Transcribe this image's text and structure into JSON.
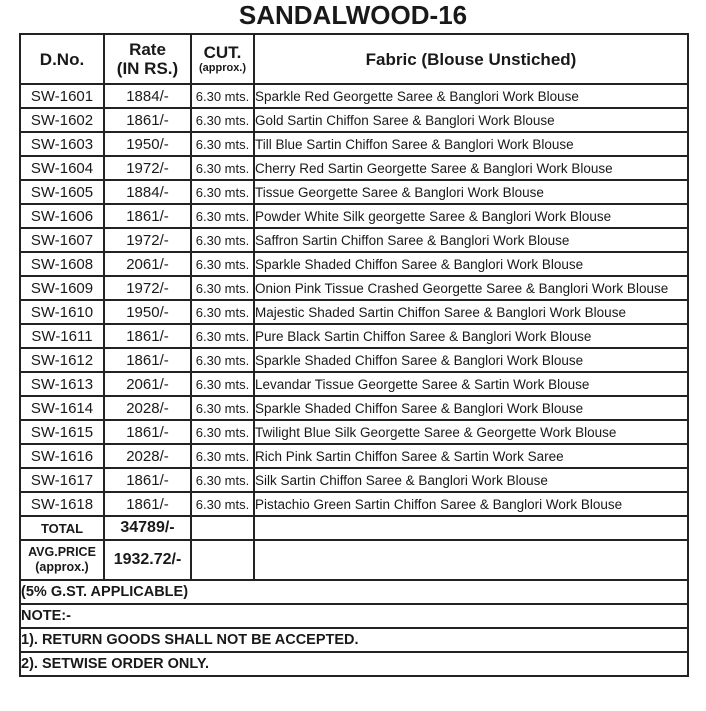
{
  "title": "SANDALWOOD-16",
  "table": {
    "headers": {
      "dno": "D.No.",
      "rate_line1": "Rate",
      "rate_line2": "(IN RS.)",
      "cut_line1": "CUT.",
      "cut_line2": "(approx.)",
      "fabric": "Fabric (Blouse Unstiched)"
    },
    "rows": [
      {
        "dno": "SW-1601",
        "rate": "1884/-",
        "cut": "6.30 mts.",
        "fabric": "Sparkle Red Georgette Saree & Banglori Work Blouse"
      },
      {
        "dno": "SW-1602",
        "rate": "1861/-",
        "cut": "6.30 mts.",
        "fabric": "Gold Sartin Chiffon Saree & Banglori Work Blouse"
      },
      {
        "dno": "SW-1603",
        "rate": "1950/-",
        "cut": "6.30 mts.",
        "fabric": "Till Blue Sartin Chiffon Saree & Banglori Work Blouse"
      },
      {
        "dno": "SW-1604",
        "rate": "1972/-",
        "cut": "6.30 mts.",
        "fabric": "Cherry Red Sartin Georgette Saree & Banglori Work Blouse"
      },
      {
        "dno": "SW-1605",
        "rate": "1884/-",
        "cut": "6.30 mts.",
        "fabric": "Tissue Georgette Saree & Banglori Work Blouse"
      },
      {
        "dno": "SW-1606",
        "rate": "1861/-",
        "cut": "6.30 mts.",
        "fabric": "Powder White Silk georgette Saree & Banglori Work Blouse"
      },
      {
        "dno": "SW-1607",
        "rate": "1972/-",
        "cut": "6.30 mts.",
        "fabric": "Saffron Sartin Chiffon Saree & Banglori Work Blouse"
      },
      {
        "dno": "SW-1608",
        "rate": "2061/-",
        "cut": "6.30 mts.",
        "fabric": "Sparkle Shaded Chiffon Saree & Banglori Work Blouse"
      },
      {
        "dno": "SW-1609",
        "rate": "1972/-",
        "cut": "6.30 mts.",
        "fabric": "Onion Pink Tissue Crashed Georgette Saree & Banglori Work Blouse"
      },
      {
        "dno": "SW-1610",
        "rate": "1950/-",
        "cut": "6.30 mts.",
        "fabric": "Majestic Shaded Sartin Chiffon Saree & Banglori Work Blouse"
      },
      {
        "dno": "SW-1611",
        "rate": "1861/-",
        "cut": "6.30 mts.",
        "fabric": "Pure Black Sartin Chiffon Saree & Banglori Work Blouse"
      },
      {
        "dno": "SW-1612",
        "rate": "1861/-",
        "cut": "6.30 mts.",
        "fabric": "Sparkle Shaded Chiffon Saree & Banglori Work Blouse"
      },
      {
        "dno": "SW-1613",
        "rate": "2061/-",
        "cut": "6.30 mts.",
        "fabric": "Levandar Tissue Georgette Saree & Sartin Work Blouse"
      },
      {
        "dno": "SW-1614",
        "rate": "2028/-",
        "cut": "6.30 mts.",
        "fabric": "Sparkle Shaded Chiffon Saree & Banglori Work Blouse"
      },
      {
        "dno": "SW-1615",
        "rate": "1861/-",
        "cut": "6.30 mts.",
        "fabric": "Twilight Blue Silk Georgette Saree & Georgette Work Blouse"
      },
      {
        "dno": "SW-1616",
        "rate": "2028/-",
        "cut": "6.30 mts.",
        "fabric": "Rich Pink Sartin Chiffon Saree & Sartin Work Saree"
      },
      {
        "dno": "SW-1617",
        "rate": "1861/-",
        "cut": "6.30 mts.",
        "fabric": "Silk Sartin Chiffon Saree & Banglori Work Blouse"
      },
      {
        "dno": "SW-1618",
        "rate": "1861/-",
        "cut": "6.30 mts.",
        "fabric": "Pistachio Green Sartin Chiffon Saree & Banglori Work Blouse"
      }
    ],
    "total": {
      "label": "TOTAL",
      "value": "34789/-"
    },
    "avg": {
      "label_line1": "AVG.PRICE",
      "label_line2": "(approx.)",
      "value": "1932.72/-"
    }
  },
  "footer": {
    "gst": "(5% G.ST. APPLICABLE)",
    "note_heading": "NOTE:-",
    "note1": "1). RETURN GOODS SHALL NOT BE ACCEPTED.",
    "note2": "2). SETWISE ORDER ONLY."
  }
}
